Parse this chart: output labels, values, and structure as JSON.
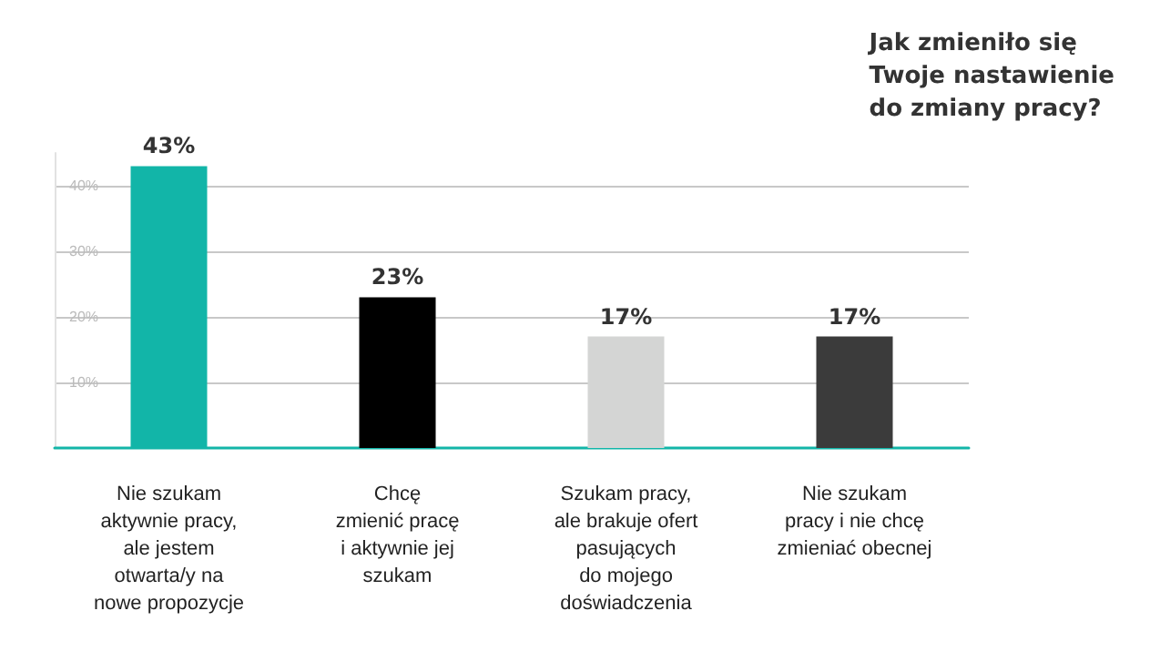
{
  "chart_data": {
    "type": "bar",
    "title": "Jak zmieniło się\nTwoje nastawienie\ndo zmiany pracy?",
    "categories": [
      "Nie szukam\naktywnie pracy,\nale jestem\notwarta/y na\nnowe propozycje",
      "Chcę\nzmienić pracę\ni aktywnie jej\nszukam",
      "Szukam pracy,\nale brakuje ofert\npasujących\ndo mojego\ndoświadczenia",
      "Nie szukam\npracy i nie chcę\nzmieniać obecnej"
    ],
    "values": [
      43,
      23,
      17,
      17
    ],
    "colors": [
      "#12b5a8",
      "#000000",
      "#d4d5d4",
      "#3b3b3b"
    ],
    "value_labels": [
      "43%",
      "23%",
      "17%",
      "17%"
    ],
    "ylim": [
      0,
      45
    ],
    "yticks": [
      {
        "value": 10,
        "label": "10%"
      },
      {
        "value": 20,
        "label": "20%"
      },
      {
        "value": 30,
        "label": "30%"
      },
      {
        "value": 40,
        "label": "40%"
      }
    ],
    "grid": "y"
  }
}
